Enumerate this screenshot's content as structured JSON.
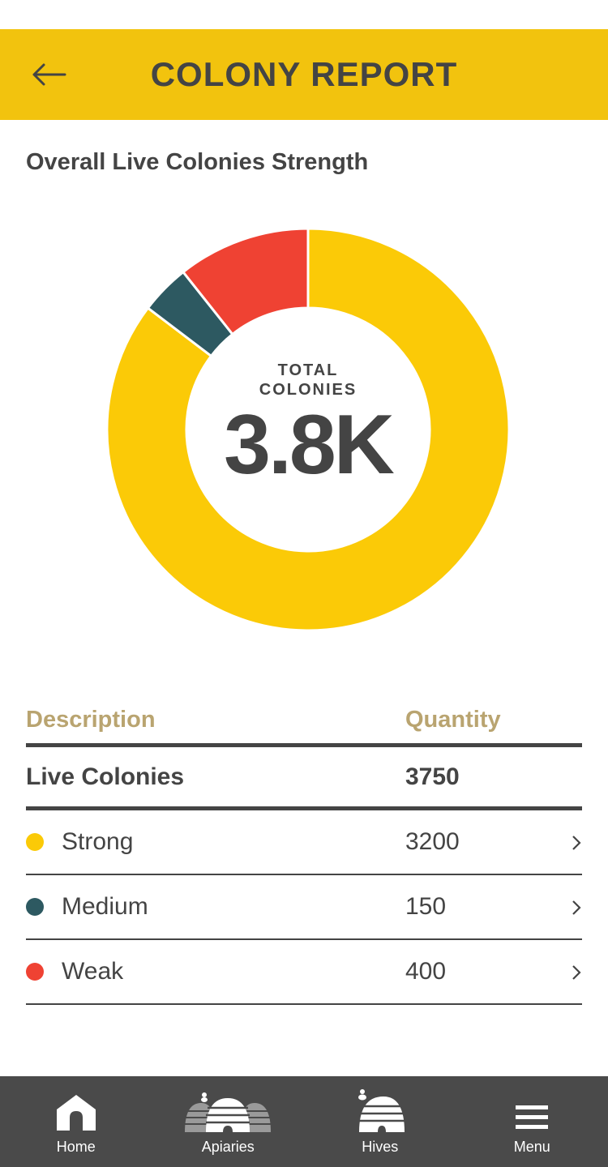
{
  "colors": {
    "header_bg": "#f2c30e",
    "tabbar_bg": "#4a4a4a",
    "text": "#444444",
    "column_header": "#b9a470"
  },
  "header": {
    "title": "COLONY REPORT",
    "back_icon": "arrow-left-icon"
  },
  "section": {
    "title": "Overall Live Colonies Strength"
  },
  "donut": {
    "center_label": "TOTAL COLONIES",
    "center_value": "3.8K"
  },
  "chart_data": {
    "type": "pie",
    "categories": [
      "Strong",
      "Medium",
      "Weak"
    ],
    "values": [
      3200,
      150,
      400
    ],
    "colors": [
      "#fbca07",
      "#2d5961",
      "#ef4233"
    ],
    "title": ""
  },
  "table": {
    "columns": [
      "Description",
      "Quantity"
    ],
    "total": {
      "label": "Live Colonies",
      "quantity": "3750"
    },
    "rows": [
      {
        "label": "Strong",
        "quantity": "3200",
        "color": "#fbca07"
      },
      {
        "label": "Medium",
        "quantity": "150",
        "color": "#2d5961"
      },
      {
        "label": "Weak",
        "quantity": "400",
        "color": "#ef4233"
      }
    ]
  },
  "tabbar": {
    "items": [
      {
        "label": "Home",
        "icon": "home-icon"
      },
      {
        "label": "Apiaries",
        "icon": "apiaries-icon"
      },
      {
        "label": "Hives",
        "icon": "hive-icon"
      },
      {
        "label": "Menu",
        "icon": "hamburger-menu-icon"
      }
    ]
  }
}
